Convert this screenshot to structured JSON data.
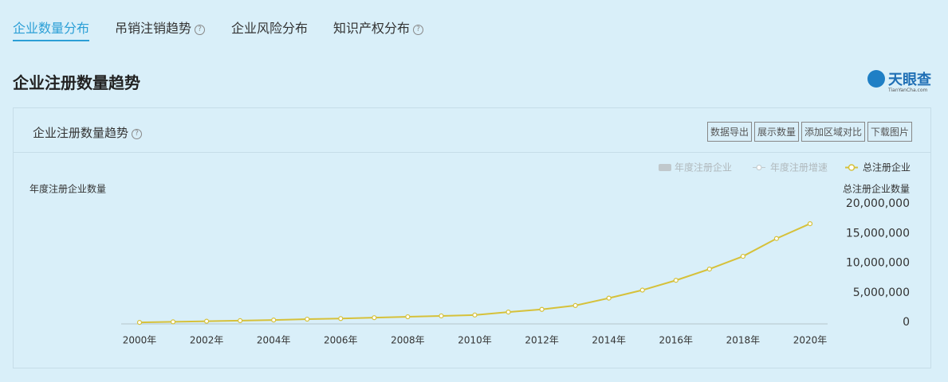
{
  "tabs": [
    "企业数量分布",
    "吊销注销趋势",
    "企业风险分布",
    "知识产权分布"
  ],
  "section_title": "企业注册数量趋势",
  "logo": {
    "text": "天眼查",
    "subtitle": "TianYanCha.com"
  },
  "panel": {
    "title": "企业注册数量趋势",
    "buttons": [
      "数据导出",
      "展示数量",
      "添加区域对比",
      "下载图片"
    ]
  },
  "chart_data": {
    "type": "line",
    "y_label": "年度注册企业数量",
    "y2_label": "总注册企业数量",
    "inactive_legend": [
      {
        "name": "年度注册企业",
        "type": "bar"
      },
      {
        "name": "年度注册增速",
        "type": "line"
      }
    ],
    "x": [
      2000,
      2001,
      2002,
      2003,
      2004,
      2005,
      2006,
      2007,
      2008,
      2009,
      2010,
      2011,
      2012,
      2013,
      2014,
      2015,
      2016,
      2017,
      2018,
      2019,
      2020
    ],
    "xlim": [
      2000,
      2020
    ],
    "xticks": [
      {
        "value": 2000,
        "label": "2000年"
      },
      {
        "value": 2002,
        "label": "2002年"
      },
      {
        "value": 2004,
        "label": "2004年"
      },
      {
        "value": 2006,
        "label": "2006年"
      },
      {
        "value": 2008,
        "label": "2008年"
      },
      {
        "value": 2010,
        "label": "2010年"
      },
      {
        "value": 2012,
        "label": "2012年"
      },
      {
        "value": 2014,
        "label": "2014年"
      },
      {
        "value": 2016,
        "label": "2016年"
      },
      {
        "value": 2018,
        "label": "2018年"
      },
      {
        "value": 2020,
        "label": "2020年"
      }
    ],
    "y2lim": [
      0,
      20000000
    ],
    "y2ticks": [
      0,
      {
        "value": 5000000,
        "label": "5,000,000"
      },
      {
        "value": 10000000,
        "label": "10,000,000"
      },
      {
        "value": 15000000,
        "label": "15,000,000"
      },
      {
        "value": 20000000,
        "label": "20,000,000"
      }
    ],
    "series": [
      {
        "name": "总注册企业",
        "color": "#d6c13a",
        "axis": "y2",
        "values": [
          250000,
          350000,
          450000,
          550000,
          650000,
          800000,
          900000,
          1050000,
          1200000,
          1350000,
          1500000,
          2000000,
          2450000,
          3100000,
          4350000,
          5700000,
          7350000,
          9250000,
          11400000,
          14400000,
          16900000
        ]
      }
    ]
  }
}
